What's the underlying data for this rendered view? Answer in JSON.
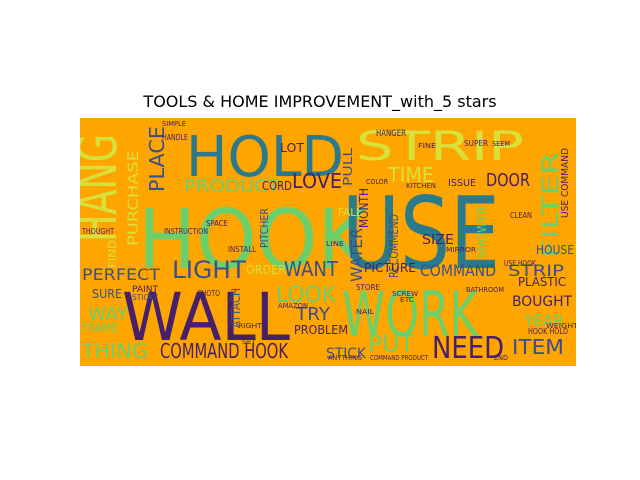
{
  "title": "TOOLS & HOME IMPROVEMENT_with_5 stars",
  "background_color": "#ffa500",
  "palette": {
    "teal": "#2b7a8c",
    "green": "#6ccf6a",
    "yellow": "#d8e03a",
    "purple": "#46206a",
    "navy": "#3b4f8a",
    "lime": "#a8d840"
  },
  "words": [
    {
      "text": "HOOK",
      "color": "green"
    },
    {
      "text": "USE",
      "color": "teal"
    },
    {
      "text": "WALL",
      "color": "purple"
    },
    {
      "text": "WORK",
      "color": "green"
    },
    {
      "text": "HOLD",
      "color": "teal"
    },
    {
      "text": "STRIP",
      "color": "yellow"
    },
    {
      "text": "HANG",
      "color": "yellow"
    },
    {
      "text": "NEED",
      "color": "purple"
    },
    {
      "text": "PUT",
      "color": "green"
    },
    {
      "text": "COMMAND HOOK",
      "color": "purple"
    },
    {
      "text": "LIGHT",
      "color": "navy"
    },
    {
      "text": "WANT",
      "color": "navy"
    },
    {
      "text": "COMMAND",
      "color": "navy"
    },
    {
      "text": "STRIP",
      "color": "navy"
    },
    {
      "text": "PRODUCT",
      "color": "green"
    },
    {
      "text": "LOVE",
      "color": "purple"
    },
    {
      "text": "TIME",
      "color": "yellow"
    },
    {
      "text": "PLACE",
      "color": "navy"
    },
    {
      "text": "FILTER",
      "color": "green"
    },
    {
      "text": "PERFECT",
      "color": "navy"
    },
    {
      "text": "THING",
      "color": "green"
    },
    {
      "text": "LOOK",
      "color": "green"
    },
    {
      "text": "ITEM",
      "color": "navy"
    },
    {
      "text": "DOOR",
      "color": "purple"
    },
    {
      "text": "BOUGHT",
      "color": "purple"
    },
    {
      "text": "TRY",
      "color": "navy"
    },
    {
      "text": "YEAR",
      "color": "green"
    },
    {
      "text": "WAY",
      "color": "green"
    },
    {
      "text": "STICK",
      "color": "navy"
    },
    {
      "text": "WATER",
      "color": "navy"
    },
    {
      "text": "RECOMMEND",
      "color": "navy"
    },
    {
      "text": "PICTURE",
      "color": "purple"
    },
    {
      "text": "SIZE",
      "color": "purple"
    },
    {
      "text": "HOUSE",
      "color": "navy"
    },
    {
      "text": "PLASTIC",
      "color": "purple"
    },
    {
      "text": "PURCHASE",
      "color": "yellow"
    },
    {
      "text": "SURE",
      "color": "navy"
    },
    {
      "text": "FRAME",
      "color": "green"
    },
    {
      "text": "PROBLEM",
      "color": "purple"
    },
    {
      "text": "USE COMMAND",
      "color": "purple"
    },
    {
      "text": "SHOWER",
      "color": "green"
    },
    {
      "text": "MONTH",
      "color": "purple"
    },
    {
      "text": "PULL",
      "color": "navy"
    },
    {
      "text": "CORD",
      "color": "purple"
    },
    {
      "text": "LOT",
      "color": "purple"
    },
    {
      "text": "ORDER",
      "color": "yellow"
    },
    {
      "text": "ATTACH",
      "color": "navy"
    },
    {
      "text": "PITCHER",
      "color": "navy"
    },
    {
      "text": "ISSUE",
      "color": "purple"
    },
    {
      "text": "FIND",
      "color": "yellow"
    },
    {
      "text": "FALL",
      "color": "yellow"
    },
    {
      "text": "PAINT",
      "color": "purple"
    },
    {
      "text": "STICKY",
      "color": "navy"
    },
    {
      "text": "USE HOOK",
      "color": "purple"
    },
    {
      "text": "CLEAN",
      "color": "purple"
    },
    {
      "text": "HANGER",
      "color": "purple"
    },
    {
      "text": "SUPER",
      "color": "purple"
    },
    {
      "text": "PHOTO",
      "color": "purple"
    },
    {
      "text": "SPACE",
      "color": "purple"
    },
    {
      "text": "INSTALL",
      "color": "purple"
    },
    {
      "text": "STORE",
      "color": "purple"
    },
    {
      "text": "MIRROR",
      "color": "purple"
    },
    {
      "text": "INSTRUCTION",
      "color": "purple"
    },
    {
      "text": "HANDLE",
      "color": "purple"
    },
    {
      "text": "THOUGHT",
      "color": "purple"
    },
    {
      "text": "KITCHEN",
      "color": "purple"
    },
    {
      "text": "BATHROOM",
      "color": "purple"
    },
    {
      "text": "HOOK HOLD",
      "color": "purple"
    },
    {
      "text": "WEIGHT",
      "color": "purple"
    },
    {
      "text": "SCREW",
      "color": "purple"
    },
    {
      "text": "ANYTHING",
      "color": "purple"
    },
    {
      "text": "COMMAND PRODUCT",
      "color": "purple"
    },
    {
      "text": "AMAZON",
      "color": "purple"
    },
    {
      "text": "SIMPLE",
      "color": "purple"
    },
    {
      "text": "NAIL",
      "color": "purple"
    },
    {
      "text": "FINE",
      "color": "purple"
    },
    {
      "text": "SEEM",
      "color": "purple"
    },
    {
      "text": "RIGHT",
      "color": "purple"
    },
    {
      "text": "SET",
      "color": "purple"
    },
    {
      "text": "COLOR",
      "color": "purple"
    },
    {
      "text": "LINE",
      "color": "purple"
    },
    {
      "text": "ETC",
      "color": "purple"
    },
    {
      "text": "END",
      "color": "purple"
    }
  ]
}
